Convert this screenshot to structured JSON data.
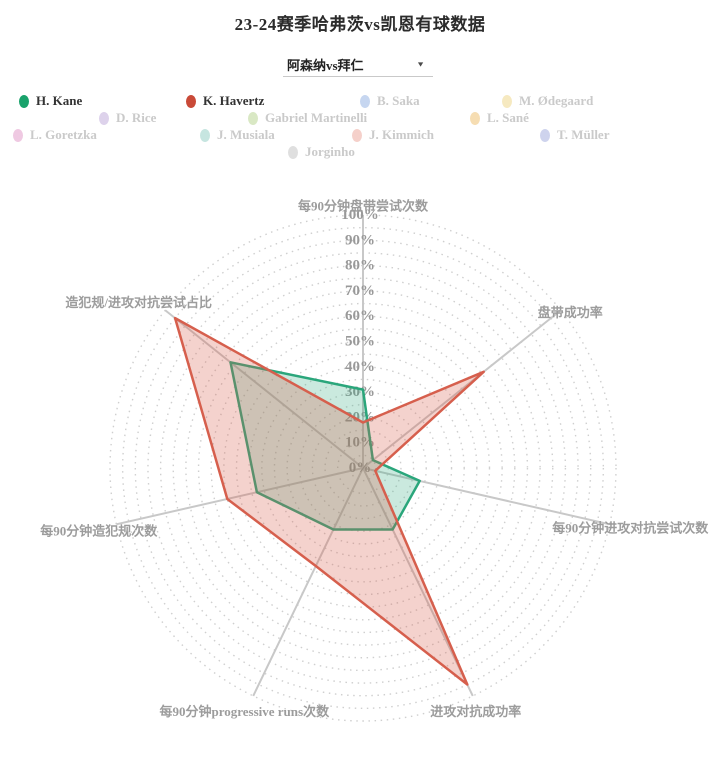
{
  "title": "23-24赛季哈弗茨vs凯恩有球数据",
  "dropdown": {
    "value": "阿森纳vs拜仁",
    "icon": "▼"
  },
  "legend": {
    "items": [
      {
        "label": "H. Kane",
        "color": "#19a26b",
        "active": true
      },
      {
        "label": "K. Havertz",
        "color": "#c94a38",
        "active": true
      },
      {
        "label": "B. Saka",
        "color": "#c6d6f0",
        "active": false
      },
      {
        "label": "M. Ødegaard",
        "color": "#f6e9c0",
        "active": false
      },
      {
        "label": "D. Rice",
        "color": "#ddd2eb",
        "active": false
      },
      {
        "label": "Gabriel Martinelli",
        "color": "#d9e8c4",
        "active": false
      },
      {
        "label": "L. Sané",
        "color": "#f6ddb2",
        "active": false
      },
      {
        "label": "L. Goretzka",
        "color": "#efc9e2",
        "active": false
      },
      {
        "label": "J. Musiala",
        "color": "#c6e5e0",
        "active": false
      },
      {
        "label": "J. Kimmich",
        "color": "#f5d0ca",
        "active": false
      },
      {
        "label": "T. Müller",
        "color": "#ced3ed",
        "active": false
      },
      {
        "label": "Jorginho",
        "color": "#dfdfdf",
        "active": false
      }
    ],
    "active_text_color": "#333333",
    "inactive_text_color": "#cacaca"
  },
  "chart_data": {
    "type": "radar",
    "title": "23-24赛季哈弗茨vs凯恩有球数据",
    "categories": [
      "每90分钟盘带尝试次数",
      "盘带成功率",
      "每90分钟进攻对抗尝试次数",
      "进攻对抗成功率",
      "每90分钟progressive runs次数",
      "每90分钟造犯规次数",
      "造犯规/进攻对抗尝试占比"
    ],
    "axis_range": [
      0,
      100
    ],
    "tick_labels": [
      "0%",
      "10%",
      "20%",
      "30%",
      "40%",
      "50%",
      "60%",
      "70%",
      "80%",
      "90%",
      "100%"
    ],
    "ring_step_percent": 5,
    "grid": "dotted-circles",
    "legend_position": "top",
    "series": [
      {
        "name": "H. Kane",
        "color": "#2aa67b",
        "fill_opacity": 0.25,
        "values": [
          31,
          5,
          23,
          27,
          27,
          43,
          67
        ]
      },
      {
        "name": "K. Havertz",
        "color": "#d65f4d",
        "fill_opacity": 0.28,
        "values": [
          18,
          61,
          5,
          95,
          43,
          55,
          95
        ]
      }
    ],
    "inactive_series": [
      "B. Saka",
      "M. Ødegaard",
      "D. Rice",
      "Gabriel Martinelli",
      "L. Sané",
      "L. Goretzka",
      "J. Musiala",
      "J. Kimmich",
      "T. Müller",
      "Jorginho"
    ],
    "grid_color": "#cfcfcf",
    "axis_line_color": "#c8c8c8",
    "label_color": "#9c9c9c"
  }
}
